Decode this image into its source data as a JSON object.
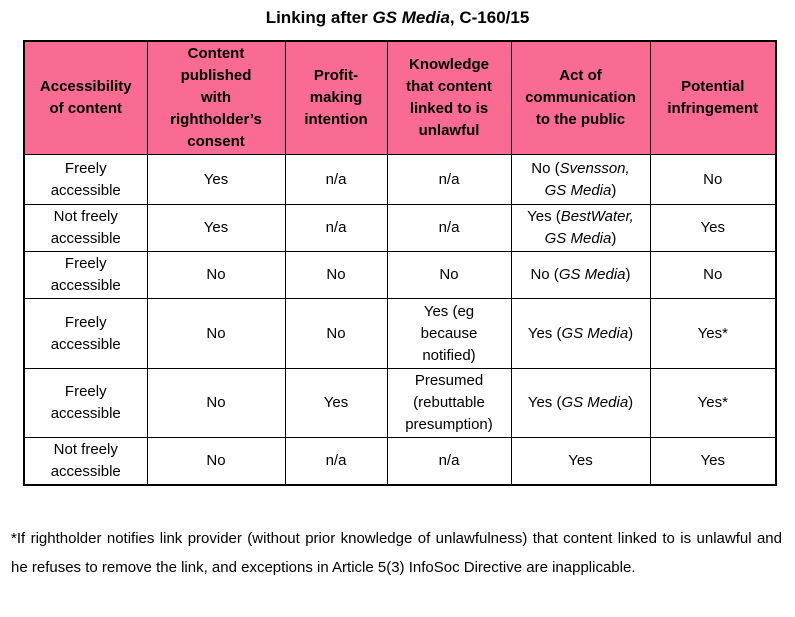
{
  "title": {
    "segments": [
      {
        "text": "Linking after "
      },
      {
        "text": "GS Media",
        "italic": true
      },
      {
        "text": ", C-160/15"
      }
    ]
  },
  "colors": {
    "header_bg": "#FA6B93",
    "border": "#000000",
    "text": "#000000",
    "page_bg": "#FFFFFF"
  },
  "table": {
    "headers": [
      "Accessibility\nof content",
      "Content\npublished\nwith\nrightholder’s\nconsent",
      "Profit-\nmaking\nintention",
      "Knowledge\nthat content\nlinked to is\nunlawful",
      "Act of\ncommunication\nto the public",
      "Potential\ninfringement"
    ],
    "rows": [
      [
        [
          {
            "text": "Freely\naccessible"
          }
        ],
        [
          {
            "text": "Yes"
          }
        ],
        [
          {
            "text": "n/a"
          }
        ],
        [
          {
            "text": "n/a"
          }
        ],
        [
          {
            "text": "No ("
          },
          {
            "text": "Svensson,\nGS Media",
            "italic": true
          },
          {
            "text": ")"
          }
        ],
        [
          {
            "text": "No"
          }
        ]
      ],
      [
        [
          {
            "text": "Not freely\naccessible"
          }
        ],
        [
          {
            "text": "Yes"
          }
        ],
        [
          {
            "text": "n/a"
          }
        ],
        [
          {
            "text": "n/a"
          }
        ],
        [
          {
            "text": "Yes ("
          },
          {
            "text": "BestWater,\nGS Media",
            "italic": true
          },
          {
            "text": ")"
          }
        ],
        [
          {
            "text": "Yes"
          }
        ]
      ],
      [
        [
          {
            "text": "Freely\naccessible"
          }
        ],
        [
          {
            "text": "No"
          }
        ],
        [
          {
            "text": "No"
          }
        ],
        [
          {
            "text": "No"
          }
        ],
        [
          {
            "text": "No ("
          },
          {
            "text": "GS Media",
            "italic": true
          },
          {
            "text": ")"
          }
        ],
        [
          {
            "text": "No"
          }
        ]
      ],
      [
        [
          {
            "text": "Freely\naccessible"
          }
        ],
        [
          {
            "text": "No"
          }
        ],
        [
          {
            "text": "No"
          }
        ],
        [
          {
            "text": "Yes (eg\nbecause\nnotified)"
          }
        ],
        [
          {
            "text": "Yes ("
          },
          {
            "text": "GS Media",
            "italic": true
          },
          {
            "text": ")"
          }
        ],
        [
          {
            "text": "Yes*"
          }
        ]
      ],
      [
        [
          {
            "text": "Freely\naccessible"
          }
        ],
        [
          {
            "text": "No"
          }
        ],
        [
          {
            "text": "Yes"
          }
        ],
        [
          {
            "text": "Presumed\n(rebuttable\npresumption)"
          }
        ],
        [
          {
            "text": "Yes ("
          },
          {
            "text": "GS Media",
            "italic": true
          },
          {
            "text": ")"
          }
        ],
        [
          {
            "text": "Yes*"
          }
        ]
      ],
      [
        [
          {
            "text": "Not freely\naccessible"
          }
        ],
        [
          {
            "text": "No"
          }
        ],
        [
          {
            "text": "n/a"
          }
        ],
        [
          {
            "text": "n/a"
          }
        ],
        [
          {
            "text": "Yes"
          }
        ],
        [
          {
            "text": "Yes"
          }
        ]
      ]
    ]
  },
  "footnote": "*If rightholder notifies link provider (without prior knowledge of unlawfulness) that content linked to is unlawful and he refuses to remove the link, and exceptions in Article 5(3) InfoSoc Directive are inapplicable."
}
